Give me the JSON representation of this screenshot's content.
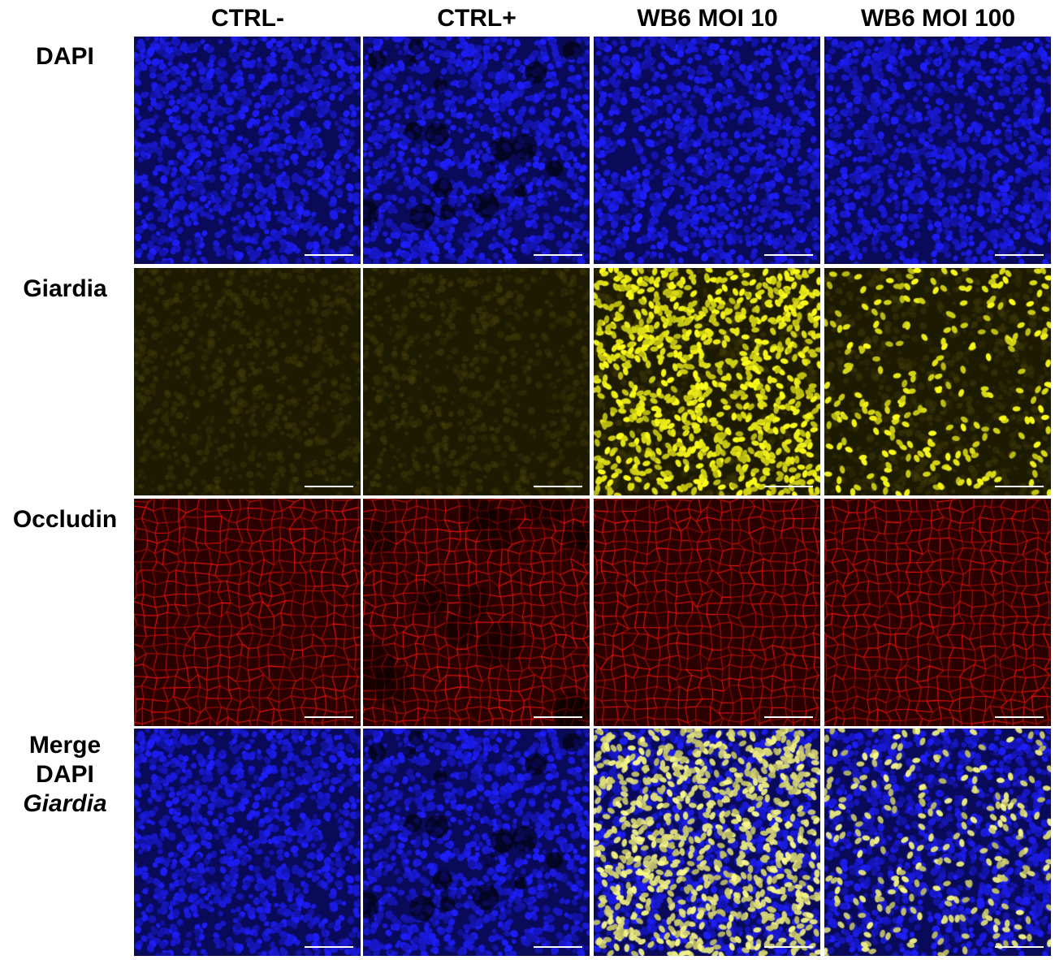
{
  "columns": [
    "CTRL-",
    "CTRL+",
    "WB6 MOI 10",
    "WB6 MOI 100"
  ],
  "rows": [
    {
      "label": "DAPI",
      "channel": "dapi"
    },
    {
      "label": "Giardia",
      "channel": "giardia"
    },
    {
      "label": "Occludin",
      "channel": "occludin"
    },
    {
      "label_lines": [
        "Merge",
        "DAPI"
      ],
      "label_italic": "Giardia",
      "channel": "merge"
    }
  ],
  "colors": {
    "dapi": "#1a1aff",
    "giardia": "#ffff1a",
    "occludin": "#ff1a1a",
    "background": "#000000",
    "scale_bar": "#ffffff"
  }
}
